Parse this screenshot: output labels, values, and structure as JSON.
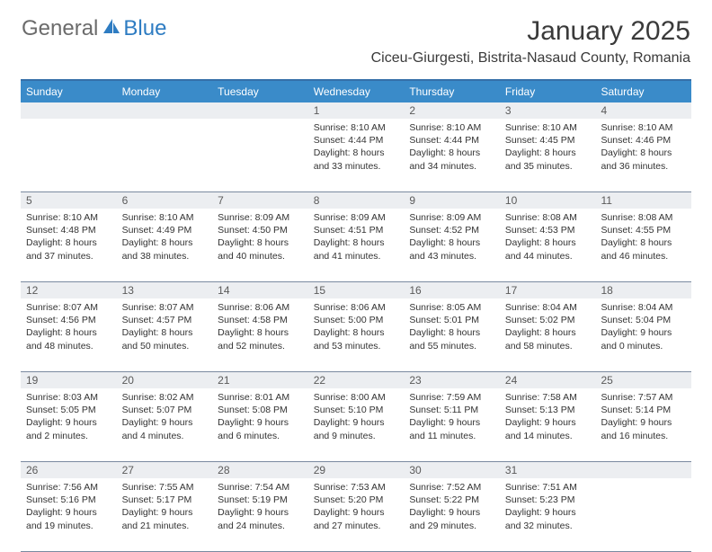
{
  "logo": {
    "text1": "General",
    "text2": "Blue"
  },
  "title": "January 2025",
  "location": "Ciceu-Giurgesti, Bistrita-Nasaud County, Romania",
  "colors": {
    "header_bg": "#3a8bc9",
    "header_border": "#356fa8",
    "daynum_bg": "#eceef1",
    "row_border": "#7a8aa0",
    "logo_gray": "#6b6b6b",
    "logo_blue": "#2e7cc2"
  },
  "weekdays": [
    "Sunday",
    "Monday",
    "Tuesday",
    "Wednesday",
    "Thursday",
    "Friday",
    "Saturday"
  ],
  "weeks": [
    {
      "nums": [
        "",
        "",
        "",
        "1",
        "2",
        "3",
        "4"
      ],
      "days": [
        null,
        null,
        null,
        {
          "sunrise": "8:10 AM",
          "sunset": "4:44 PM",
          "dl_h": 8,
          "dl_m": 33
        },
        {
          "sunrise": "8:10 AM",
          "sunset": "4:44 PM",
          "dl_h": 8,
          "dl_m": 34
        },
        {
          "sunrise": "8:10 AM",
          "sunset": "4:45 PM",
          "dl_h": 8,
          "dl_m": 35
        },
        {
          "sunrise": "8:10 AM",
          "sunset": "4:46 PM",
          "dl_h": 8,
          "dl_m": 36
        }
      ]
    },
    {
      "nums": [
        "5",
        "6",
        "7",
        "8",
        "9",
        "10",
        "11"
      ],
      "days": [
        {
          "sunrise": "8:10 AM",
          "sunset": "4:48 PM",
          "dl_h": 8,
          "dl_m": 37
        },
        {
          "sunrise": "8:10 AM",
          "sunset": "4:49 PM",
          "dl_h": 8,
          "dl_m": 38
        },
        {
          "sunrise": "8:09 AM",
          "sunset": "4:50 PM",
          "dl_h": 8,
          "dl_m": 40
        },
        {
          "sunrise": "8:09 AM",
          "sunset": "4:51 PM",
          "dl_h": 8,
          "dl_m": 41
        },
        {
          "sunrise": "8:09 AM",
          "sunset": "4:52 PM",
          "dl_h": 8,
          "dl_m": 43
        },
        {
          "sunrise": "8:08 AM",
          "sunset": "4:53 PM",
          "dl_h": 8,
          "dl_m": 44
        },
        {
          "sunrise": "8:08 AM",
          "sunset": "4:55 PM",
          "dl_h": 8,
          "dl_m": 46
        }
      ]
    },
    {
      "nums": [
        "12",
        "13",
        "14",
        "15",
        "16",
        "17",
        "18"
      ],
      "days": [
        {
          "sunrise": "8:07 AM",
          "sunset": "4:56 PM",
          "dl_h": 8,
          "dl_m": 48
        },
        {
          "sunrise": "8:07 AM",
          "sunset": "4:57 PM",
          "dl_h": 8,
          "dl_m": 50
        },
        {
          "sunrise": "8:06 AM",
          "sunset": "4:58 PM",
          "dl_h": 8,
          "dl_m": 52
        },
        {
          "sunrise": "8:06 AM",
          "sunset": "5:00 PM",
          "dl_h": 8,
          "dl_m": 53
        },
        {
          "sunrise": "8:05 AM",
          "sunset": "5:01 PM",
          "dl_h": 8,
          "dl_m": 55
        },
        {
          "sunrise": "8:04 AM",
          "sunset": "5:02 PM",
          "dl_h": 8,
          "dl_m": 58
        },
        {
          "sunrise": "8:04 AM",
          "sunset": "5:04 PM",
          "dl_h": 9,
          "dl_m": 0
        }
      ]
    },
    {
      "nums": [
        "19",
        "20",
        "21",
        "22",
        "23",
        "24",
        "25"
      ],
      "days": [
        {
          "sunrise": "8:03 AM",
          "sunset": "5:05 PM",
          "dl_h": 9,
          "dl_m": 2
        },
        {
          "sunrise": "8:02 AM",
          "sunset": "5:07 PM",
          "dl_h": 9,
          "dl_m": 4
        },
        {
          "sunrise": "8:01 AM",
          "sunset": "5:08 PM",
          "dl_h": 9,
          "dl_m": 6
        },
        {
          "sunrise": "8:00 AM",
          "sunset": "5:10 PM",
          "dl_h": 9,
          "dl_m": 9
        },
        {
          "sunrise": "7:59 AM",
          "sunset": "5:11 PM",
          "dl_h": 9,
          "dl_m": 11
        },
        {
          "sunrise": "7:58 AM",
          "sunset": "5:13 PM",
          "dl_h": 9,
          "dl_m": 14
        },
        {
          "sunrise": "7:57 AM",
          "sunset": "5:14 PM",
          "dl_h": 9,
          "dl_m": 16
        }
      ]
    },
    {
      "nums": [
        "26",
        "27",
        "28",
        "29",
        "30",
        "31",
        ""
      ],
      "days": [
        {
          "sunrise": "7:56 AM",
          "sunset": "5:16 PM",
          "dl_h": 9,
          "dl_m": 19
        },
        {
          "sunrise": "7:55 AM",
          "sunset": "5:17 PM",
          "dl_h": 9,
          "dl_m": 21
        },
        {
          "sunrise": "7:54 AM",
          "sunset": "5:19 PM",
          "dl_h": 9,
          "dl_m": 24
        },
        {
          "sunrise": "7:53 AM",
          "sunset": "5:20 PM",
          "dl_h": 9,
          "dl_m": 27
        },
        {
          "sunrise": "7:52 AM",
          "sunset": "5:22 PM",
          "dl_h": 9,
          "dl_m": 29
        },
        {
          "sunrise": "7:51 AM",
          "sunset": "5:23 PM",
          "dl_h": 9,
          "dl_m": 32
        },
        null
      ]
    }
  ]
}
